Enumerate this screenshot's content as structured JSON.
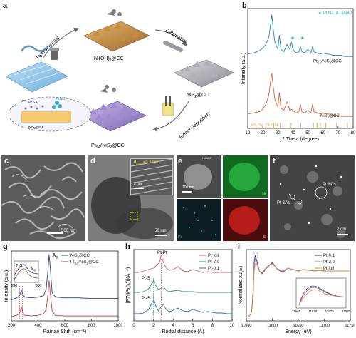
{
  "panels": {
    "a": {
      "letter": "a",
      "labels": {
        "cc": "CC",
        "hydrothermal": "Hydrothermal",
        "niOH2": "Ni(OH)",
        "niOH2_sub": "2",
        "niOH2_tail": "@CC",
        "calcination": "Calcination",
        "nis2": "NiS",
        "nis2_sub": "2",
        "nis2_tail": "@CC",
        "electrodeposition": "Electrodeposition",
        "pt_nis2_pre": "Pt",
        "pt_nis2_sub": "SA",
        "pt_nis2_mid": "/NiS",
        "pt_nis2_sub2": "2",
        "pt_nis2_tail": "@CC",
        "inset_pt_sa": "Pt SA",
        "inset_pt_nc": "Pt NC",
        "inset_nis2": "NiS",
        "inset_nis2_sub": "2",
        "inset_nis2_tail": "@CC"
      }
    },
    "b": {
      "letter": "b",
      "legend": "★ Pt No. 87-0640",
      "ref_label": "NiS₂ No. 73-0574"
    },
    "c": {
      "letter": "c",
      "scale": "500 nm"
    },
    "d": {
      "letter": "d",
      "d_label": "d",
      "d_sub": "(200)",
      "d_value": "=0.28nm",
      "scale_inset": "2 nm",
      "scale_main": "50 nm"
    },
    "e": {
      "letter": "e",
      "haadf": "HAADF",
      "scale": "100 nm",
      "ni": "Ni",
      "pt": "Pt",
      "s": "S"
    },
    "f": {
      "letter": "f",
      "pt_ncs": "Pt NCs",
      "pt_sas": "Pt SAs",
      "scale": "2 nm"
    },
    "g": {
      "letter": "g"
    },
    "h": {
      "letter": "h",
      "ptpt": "Pt-Pt",
      "pts1": "Pt-S",
      "pts2": "Pt-S"
    },
    "i": {
      "letter": "i"
    }
  },
  "chart_data": [
    {
      "id": "b",
      "type": "line",
      "title": "",
      "xlabel": "2 Theta (degree)",
      "ylabel": "Intensity (a.u.)",
      "xlim": [
        10,
        80
      ],
      "x_ticks": [
        10,
        20,
        30,
        40,
        50,
        60,
        70,
        80
      ],
      "series": [
        {
          "name": "PtₛA/NiS₂@CC",
          "display": {
            "pre": "Pt",
            "sub": "SA",
            "mid": "/NiS",
            "sub2": "2",
            "tail": "@CC"
          },
          "color": "#2f7fc1",
          "x": [
            10,
            14,
            18,
            20,
            22,
            24,
            25,
            26,
            27,
            28,
            30,
            31,
            32,
            34,
            36,
            38,
            39,
            40,
            42,
            44,
            45,
            46,
            48,
            50,
            52,
            53,
            54,
            56,
            58,
            60,
            62,
            64,
            66,
            68,
            70,
            72,
            74,
            76,
            78,
            80
          ],
          "y": [
            0.62,
            0.63,
            0.65,
            0.67,
            0.7,
            0.76,
            0.85,
            0.95,
            0.82,
            0.72,
            0.66,
            0.78,
            0.66,
            0.64,
            0.7,
            0.66,
            0.72,
            0.66,
            0.63,
            0.64,
            0.68,
            0.64,
            0.63,
            0.66,
            0.63,
            0.68,
            0.64,
            0.63,
            0.62,
            0.63,
            0.62,
            0.62,
            0.61,
            0.61,
            0.61,
            0.61,
            0.6,
            0.6,
            0.6,
            0.6
          ]
        },
        {
          "name": "NiS₂@CC",
          "display": {
            "pre": "NiS",
            "sub": "2",
            "mid": "",
            "sub2": "",
            "tail": "@CC"
          },
          "color": "#e0603a",
          "x": [
            10,
            14,
            18,
            20,
            22,
            24,
            25,
            26,
            27,
            28,
            30,
            31,
            32,
            34,
            36,
            38,
            39,
            40,
            42,
            44,
            45,
            46,
            48,
            50,
            52,
            53,
            54,
            56,
            58,
            60,
            62,
            64,
            66,
            68,
            70,
            72,
            74,
            76,
            78,
            80
          ],
          "y": [
            0.12,
            0.13,
            0.14,
            0.16,
            0.2,
            0.28,
            0.38,
            0.46,
            0.34,
            0.24,
            0.18,
            0.3,
            0.17,
            0.15,
            0.22,
            0.15,
            0.16,
            0.15,
            0.13,
            0.14,
            0.2,
            0.14,
            0.13,
            0.15,
            0.13,
            0.2,
            0.14,
            0.13,
            0.12,
            0.13,
            0.12,
            0.12,
            0.11,
            0.11,
            0.11,
            0.1,
            0.1,
            0.1,
            0.1,
            0.1
          ]
        }
      ],
      "reference_ticks_x": [
        27.2,
        31.6,
        35.3,
        38.8,
        45.2,
        53.6,
        56.0,
        58.2,
        61.9,
        68.8,
        76.2
      ],
      "pt_star_x": [
        39.8,
        46.3
      ]
    },
    {
      "id": "g",
      "type": "line",
      "xlabel": "Raman Shift (cm⁻¹)",
      "ylabel": "Intensity (a.u.)",
      "xlim": [
        200,
        1000
      ],
      "x_ticks": [
        200,
        400,
        600,
        800,
        1000
      ],
      "annotation": "A",
      "annotation_sub": "g",
      "series": [
        {
          "name": "NiS₂@CC",
          "display": {
            "pre": "NiS",
            "sub": "2",
            "mid": "",
            "sub2": "",
            "tail": "@CC"
          },
          "color": "#2a3f8f",
          "x": [
            200,
            240,
            260,
            275,
            285,
            300,
            350,
            400,
            440,
            460,
            475,
            482,
            490,
            505,
            530,
            600,
            700,
            800,
            900,
            1000
          ],
          "y": [
            0.3,
            0.33,
            0.36,
            0.44,
            0.38,
            0.34,
            0.33,
            0.34,
            0.36,
            0.45,
            0.75,
            0.95,
            0.78,
            0.4,
            0.34,
            0.33,
            0.33,
            0.32,
            0.32,
            0.32
          ]
        },
        {
          "name": "PtₛA/NiS₂@CC",
          "display": {
            "pre": "Pt",
            "sub": "SA",
            "mid": "/NiS",
            "sub2": "2",
            "tail": "@CC"
          },
          "color": "#c8423a",
          "x": [
            200,
            240,
            260,
            275,
            285,
            300,
            350,
            400,
            440,
            460,
            475,
            482,
            490,
            505,
            530,
            600,
            700,
            800,
            900,
            1000
          ],
          "y": [
            0.06,
            0.08,
            0.1,
            0.2,
            0.12,
            0.08,
            0.07,
            0.08,
            0.1,
            0.16,
            0.4,
            0.58,
            0.42,
            0.14,
            0.08,
            0.07,
            0.07,
            0.07,
            0.07,
            0.07
          ]
        }
      ],
      "inset": {
        "xlim": [
          240,
          300
        ],
        "x_ticks": [
          240,
          300
        ],
        "labels": [
          "T",
          "g",
          "(1)",
          "E",
          "g"
        ]
      }
    },
    {
      "id": "h",
      "type": "line",
      "xlabel": "Radial distance (Å)",
      "ylabel": "|FT(k³χ(k))|(Å⁻⁴)",
      "xlim": [
        0,
        10
      ],
      "x_ticks": [
        0,
        2,
        4,
        6,
        8,
        10
      ],
      "series": [
        {
          "name": "Pt foil",
          "color": "#d9606a",
          "x": [
            0,
            0.5,
            1,
            1.5,
            2,
            2.3,
            2.6,
            2.8,
            3.0,
            3.3,
            3.6,
            4,
            4.5,
            5,
            5.5,
            6,
            6.5,
            7,
            7.5,
            8,
            8.5,
            9,
            9.5,
            10
          ],
          "y": [
            0.68,
            0.68,
            0.7,
            0.72,
            0.74,
            0.78,
            0.82,
            0.93,
            0.82,
            0.74,
            0.71,
            0.72,
            0.76,
            0.7,
            0.69,
            0.72,
            0.7,
            0.68,
            0.69,
            0.68,
            0.68,
            0.68,
            0.68,
            0.68
          ]
        },
        {
          "name": "Pt-2.0",
          "color": "#2a8f7a",
          "x": [
            0,
            0.5,
            1,
            1.5,
            1.8,
            2.0,
            2.2,
            2.5,
            2.8,
            3.0,
            3.3,
            3.6,
            4,
            4.5,
            5,
            5.5,
            6,
            6.5,
            7,
            7.5,
            8,
            8.5,
            9,
            9.5,
            10
          ],
          "y": [
            0.4,
            0.4,
            0.41,
            0.45,
            0.52,
            0.56,
            0.5,
            0.44,
            0.46,
            0.48,
            0.43,
            0.41,
            0.42,
            0.43,
            0.41,
            0.41,
            0.41,
            0.4,
            0.4,
            0.4,
            0.4,
            0.4,
            0.4,
            0.4,
            0.4
          ]
        },
        {
          "name": "Pt-0.1",
          "color": "#2f6fb5",
          "x": [
            0,
            0.5,
            1,
            1.5,
            1.8,
            2.0,
            2.2,
            2.5,
            2.8,
            3.0,
            3.3,
            3.6,
            4,
            4.5,
            5,
            5.5,
            6,
            6.5,
            7,
            7.5,
            8,
            8.5,
            9,
            9.5,
            10
          ],
          "y": [
            0.1,
            0.1,
            0.11,
            0.16,
            0.24,
            0.28,
            0.22,
            0.14,
            0.2,
            0.23,
            0.16,
            0.13,
            0.15,
            0.18,
            0.14,
            0.13,
            0.16,
            0.14,
            0.12,
            0.13,
            0.12,
            0.11,
            0.11,
            0.1,
            0.1
          ]
        }
      ]
    },
    {
      "id": "i",
      "type": "line",
      "xlabel": "Energy (eV)",
      "ylabel": "Normalized xμ(E)",
      "xlim": [
        11550,
        11750
      ],
      "x_ticks": [
        11550,
        11600,
        11650,
        11700,
        11750
      ],
      "series": [
        {
          "name": "Pt-0.1",
          "color": "#2a3f8f",
          "x": [
            11550,
            11555,
            11560,
            11563,
            11565,
            11567,
            11570,
            11575,
            11580,
            11590,
            11600,
            11610,
            11620,
            11630,
            11640,
            11650,
            11660,
            11670,
            11680,
            11690,
            11700,
            11720,
            11750
          ],
          "y": [
            0.05,
            0.06,
            0.12,
            0.4,
            0.82,
            0.92,
            0.85,
            0.7,
            0.66,
            0.75,
            0.82,
            0.72,
            0.68,
            0.74,
            0.72,
            0.7,
            0.72,
            0.71,
            0.7,
            0.71,
            0.7,
            0.7,
            0.7
          ]
        },
        {
          "name": "Pt-2.0",
          "color": "#9a6aa8",
          "x": [
            11550,
            11555,
            11560,
            11563,
            11565,
            11567,
            11570,
            11575,
            11580,
            11590,
            11600,
            11610,
            11620,
            11630,
            11640,
            11650,
            11660,
            11670,
            11680,
            11690,
            11700,
            11720,
            11750
          ],
          "y": [
            0.05,
            0.06,
            0.12,
            0.38,
            0.78,
            0.88,
            0.83,
            0.7,
            0.67,
            0.75,
            0.81,
            0.72,
            0.69,
            0.74,
            0.72,
            0.7,
            0.72,
            0.71,
            0.7,
            0.71,
            0.7,
            0.7,
            0.7
          ]
        },
        {
          "name": "Pt foil",
          "color": "#e08a3a",
          "x": [
            11550,
            11555,
            11560,
            11563,
            11565,
            11567,
            11570,
            11575,
            11580,
            11590,
            11600,
            11610,
            11620,
            11630,
            11640,
            11650,
            11660,
            11670,
            11680,
            11690,
            11700,
            11720,
            11750
          ],
          "y": [
            0.05,
            0.06,
            0.12,
            0.34,
            0.7,
            0.8,
            0.8,
            0.7,
            0.68,
            0.76,
            0.8,
            0.73,
            0.7,
            0.74,
            0.72,
            0.71,
            0.72,
            0.71,
            0.7,
            0.71,
            0.7,
            0.7,
            0.7
          ]
        }
      ],
      "inset": {
        "xlim": [
          11565,
          11580
        ],
        "x_ticks": [
          11565,
          11570,
          11575,
          11580
        ]
      }
    }
  ]
}
